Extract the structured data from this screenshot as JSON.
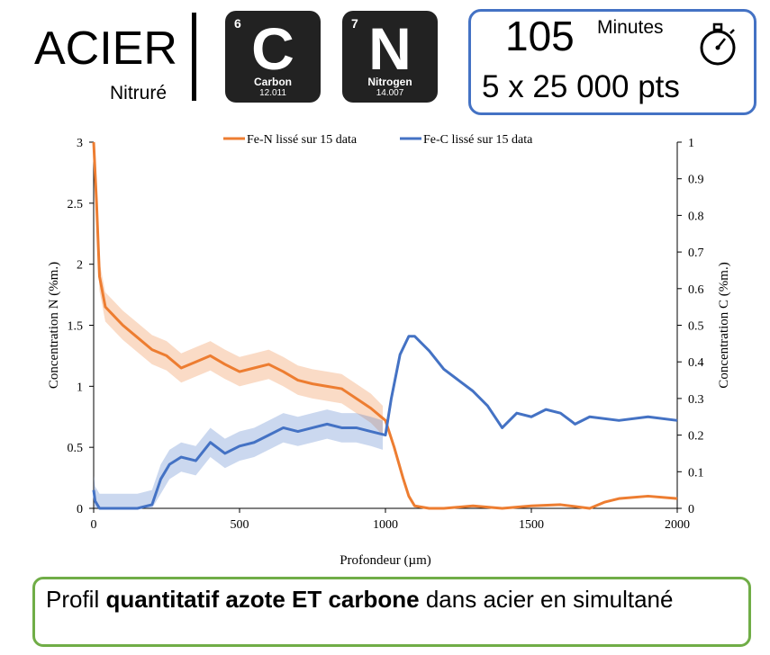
{
  "header": {
    "title": "ACIER",
    "subtitle": "Nitruré",
    "elements": [
      {
        "number": "6",
        "symbol": "C",
        "name": "Carbon",
        "mass": "12.011"
      },
      {
        "number": "7",
        "symbol": "N",
        "name": "Nitrogen",
        "mass": "14.007"
      }
    ],
    "info": {
      "minutes_value": "105",
      "minutes_label": "Minutes",
      "points": "5 x 25 000 pts",
      "icon": "stopwatch-icon"
    }
  },
  "footer": {
    "text_prefix": "Profil ",
    "text_bold": "quantitatif azote ET carbone",
    "text_suffix": " dans acier en simultané"
  },
  "chart_data": {
    "type": "line",
    "title": "",
    "xlabel": "Profondeur (µm)",
    "ylabel": "Concentration N (%m.)",
    "y2label": "Concentration C (%m.)",
    "xlim": [
      0,
      2000
    ],
    "ylim": [
      0,
      3
    ],
    "y2lim": [
      0,
      1
    ],
    "xticks": [
      0,
      500,
      1000,
      1500,
      2000
    ],
    "yticks": [
      0,
      0.5,
      1,
      1.5,
      2,
      2.5,
      3
    ],
    "y2ticks": [
      0,
      0.1,
      0.2,
      0.3,
      0.4,
      0.5,
      0.6,
      0.7,
      0.8,
      0.9,
      1
    ],
    "legend_position": "top",
    "grid": false,
    "series": [
      {
        "name": "Fe-N lissé sur 15 data",
        "axis": "left",
        "color": "#ed7d31",
        "x": [
          0,
          10,
          20,
          40,
          60,
          100,
          150,
          200,
          250,
          300,
          350,
          400,
          450,
          500,
          550,
          600,
          650,
          700,
          750,
          800,
          850,
          900,
          950,
          1000,
          1030,
          1060,
          1080,
          1100,
          1150,
          1200,
          1300,
          1400,
          1500,
          1600,
          1700,
          1750,
          1800,
          1900,
          2000
        ],
        "y": [
          3.0,
          2.5,
          1.9,
          1.65,
          1.6,
          1.5,
          1.4,
          1.3,
          1.25,
          1.15,
          1.2,
          1.25,
          1.18,
          1.12,
          1.15,
          1.18,
          1.12,
          1.05,
          1.02,
          1.0,
          0.98,
          0.9,
          0.82,
          0.72,
          0.5,
          0.25,
          0.1,
          0.02,
          0.0,
          0.0,
          0.02,
          0.0,
          0.02,
          0.03,
          0.0,
          0.05,
          0.08,
          0.1,
          0.08
        ]
      },
      {
        "name": "Fe-C lissé sur 15 data",
        "axis": "right",
        "color": "#4472c4",
        "x": [
          0,
          5,
          20,
          50,
          100,
          150,
          200,
          230,
          260,
          300,
          350,
          400,
          450,
          500,
          550,
          600,
          650,
          700,
          750,
          800,
          850,
          900,
          950,
          1000,
          1020,
          1050,
          1080,
          1100,
          1150,
          1200,
          1250,
          1300,
          1350,
          1400,
          1450,
          1500,
          1550,
          1600,
          1650,
          1700,
          1800,
          1900,
          2000
        ],
        "y": [
          0.05,
          0.02,
          0.0,
          0.0,
          0.0,
          0.0,
          0.01,
          0.08,
          0.12,
          0.14,
          0.13,
          0.18,
          0.15,
          0.17,
          0.18,
          0.2,
          0.22,
          0.21,
          0.22,
          0.23,
          0.22,
          0.22,
          0.21,
          0.2,
          0.3,
          0.42,
          0.47,
          0.47,
          0.43,
          0.38,
          0.35,
          0.32,
          0.28,
          0.22,
          0.26,
          0.25,
          0.27,
          0.26,
          0.23,
          0.25,
          0.24,
          0.25,
          0.24
        ]
      }
    ]
  }
}
